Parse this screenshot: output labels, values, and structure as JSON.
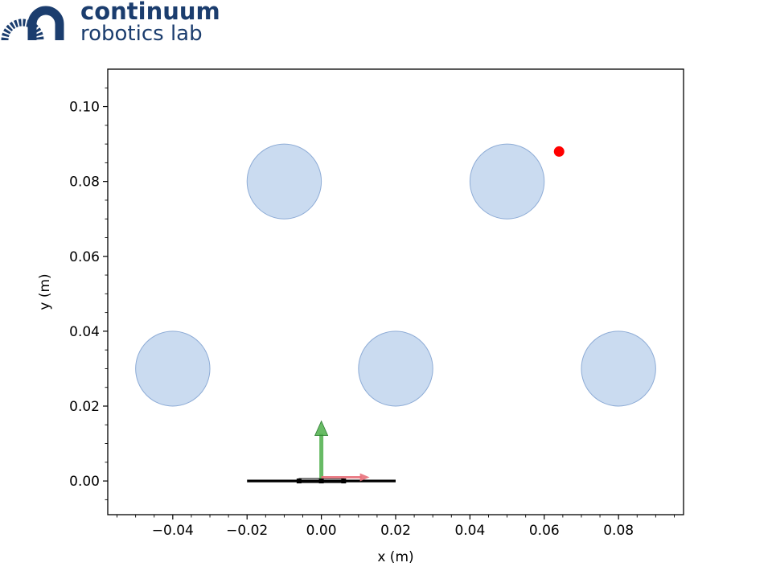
{
  "logo": {
    "line1": "continuum",
    "line2": "robotics lab",
    "color": "#1b3d6e"
  },
  "chart_data": {
    "type": "scatter",
    "xlabel": "x (m)",
    "ylabel": "y (m)",
    "xlim": [
      -0.0575,
      0.0975
    ],
    "ylim": [
      -0.009,
      0.11
    ],
    "xticks": [
      -0.04,
      -0.02,
      0.0,
      0.02,
      0.04,
      0.06,
      0.08
    ],
    "xtick_labels": [
      "−0.04",
      "−0.02",
      "0.00",
      "0.02",
      "0.04",
      "0.06",
      "0.08"
    ],
    "yticks": [
      0.0,
      0.02,
      0.04,
      0.06,
      0.08,
      0.1
    ],
    "ytick_labels": [
      "0.00",
      "0.02",
      "0.04",
      "0.06",
      "0.08",
      "0.10"
    ],
    "minor_xticks": [
      -0.055,
      -0.05,
      -0.045,
      -0.035,
      -0.03,
      -0.025,
      -0.015,
      -0.01,
      -0.005,
      0.005,
      0.01,
      0.015,
      0.025,
      0.03,
      0.035,
      0.045,
      0.05,
      0.055,
      0.065,
      0.07,
      0.075,
      0.085,
      0.09,
      0.095
    ],
    "minor_yticks": [
      -0.005,
      0.005,
      0.01,
      0.015,
      0.025,
      0.03,
      0.035,
      0.045,
      0.05,
      0.055,
      0.065,
      0.07,
      0.075,
      0.085,
      0.09,
      0.095,
      0.105
    ],
    "obstacles": {
      "radius": 0.01,
      "color": "#aec7e8",
      "centers": [
        [
          -0.01,
          0.08
        ],
        [
          0.05,
          0.08
        ],
        [
          -0.04,
          0.03
        ],
        [
          0.02,
          0.03
        ],
        [
          0.08,
          0.03
        ]
      ]
    },
    "target": {
      "x": 0.064,
      "y": 0.088,
      "color": "#ff0000"
    },
    "base_bar": {
      "x": [
        -0.02,
        0.02
      ],
      "y": 0.0,
      "color": "#000000"
    },
    "inner_bar": {
      "x": [
        -0.006,
        0.006
      ],
      "y": 0.0
    },
    "frame": {
      "origin": [
        0.0,
        0.0
      ],
      "y_axis": {
        "to": [
          0.0,
          0.016
        ],
        "color": "#4daf4a"
      },
      "x_axis": {
        "to": [
          0.013,
          0.001
        ],
        "color": "#e8707a"
      }
    },
    "grid": false
  }
}
